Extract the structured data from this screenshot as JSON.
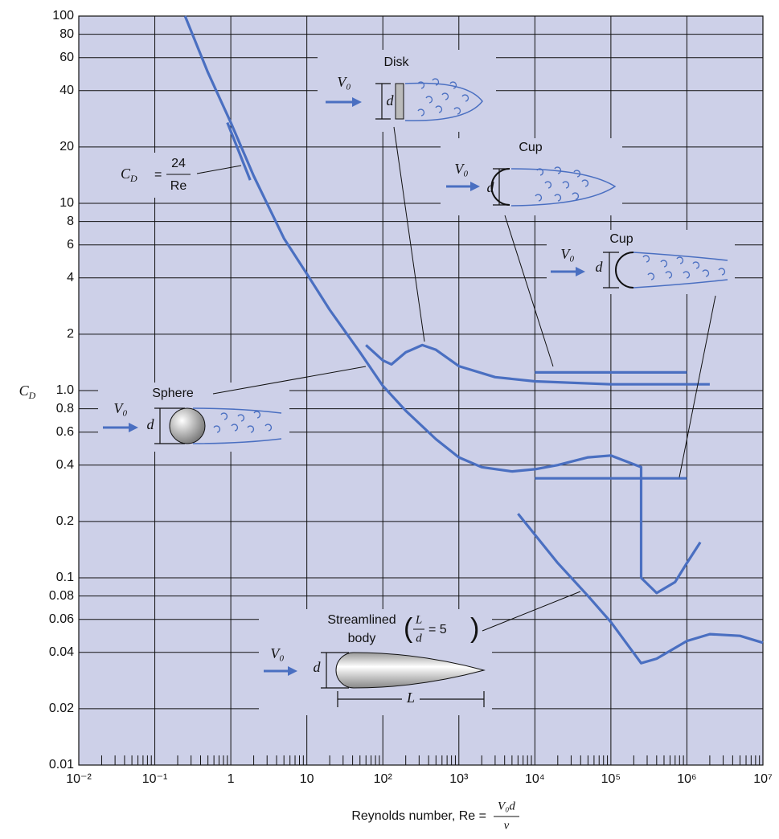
{
  "chart_data": {
    "type": "line",
    "xlabel": "Reynolds number, Re =",
    "xlabel_fraction": {
      "numerator": "V₀d",
      "denominator": "ν"
    },
    "ylabel": {
      "symbol": "C",
      "subscript": "D"
    },
    "log_x": true,
    "log_y": true,
    "grid": true,
    "xlim": [
      0.01,
      10000000
    ],
    "ylim": [
      0.01,
      100
    ],
    "xticks": [
      {
        "value": 0.01,
        "label": "10⁻²"
      },
      {
        "value": 0.1,
        "label": "10⁻¹"
      },
      1,
      10,
      {
        "value": 100,
        "label": "10²"
      },
      {
        "value": 1000,
        "label": "10³"
      },
      {
        "value": 10000,
        "label": "10⁴"
      },
      {
        "value": 100000,
        "label": "10⁵"
      },
      {
        "value": 1000000,
        "label": "10⁶"
      },
      {
        "value": 10000000,
        "label": "10⁷"
      }
    ],
    "yticks": [
      0.01,
      0.02,
      0.04,
      0.06,
      0.08,
      0.1,
      0.2,
      0.4,
      0.6,
      0.8,
      {
        "value": 1,
        "label": "1.0"
      },
      2,
      4,
      6,
      8,
      10,
      20,
      40,
      60,
      80,
      100
    ],
    "series": [
      {
        "color": "#4a6fc1",
        "x": [
          0.25,
          0.5,
          1,
          2,
          5,
          10,
          20,
          50,
          100,
          200,
          500,
          1000,
          2000,
          5000,
          10000,
          20000,
          50000,
          100000,
          250000,
          250000,
          400000,
          700000,
          1000000,
          1500000
        ],
        "values": [
          100,
          50,
          27,
          14,
          6.5,
          4.2,
          2.7,
          1.6,
          1.06,
          0.78,
          0.55,
          0.44,
          0.39,
          0.37,
          0.38,
          0.4,
          0.44,
          0.45,
          0.39,
          0.1,
          0.083,
          0.095,
          0.12,
          0.155
        ]
      },
      {
        "color": "#4a6fc1",
        "x": [
          60,
          100,
          130,
          200,
          330,
          500,
          1000,
          3000,
          10000,
          100000,
          2000000
        ],
        "values": [
          1.75,
          1.45,
          1.38,
          1.6,
          1.75,
          1.65,
          1.35,
          1.18,
          1.12,
          1.08,
          1.08
        ]
      },
      {
        "color": "#4a6fc1",
        "x": [
          10000,
          1000000
        ],
        "values": [
          1.25,
          1.25
        ]
      },
      {
        "color": "#4a6fc1",
        "x": [
          10000,
          1000000
        ],
        "values": [
          0.34,
          0.34
        ]
      },
      {
        "color": "#4a6fc1",
        "x": [
          0.9,
          1.8
        ],
        "values": [
          27,
          13.3
        ]
      },
      {
        "color": "#4a6fc1",
        "x": [
          6000,
          10000,
          20000,
          50000,
          100000,
          250000,
          400000,
          1000000,
          2000000,
          5000000,
          10000000
        ],
        "values": [
          0.22,
          0.17,
          0.12,
          0.08,
          0.058,
          0.035,
          0.037,
          0.046,
          0.05,
          0.049,
          0.045
        ]
      }
    ],
    "annotations": {
      "disk": {
        "label": "Disk",
        "velocity": "V₀",
        "diameter": "d"
      },
      "cup_open": {
        "label": "Cup",
        "velocity": "V₀",
        "diameter": "d"
      },
      "cup_hemisphere": {
        "label": "Cup",
        "velocity": "V₀",
        "diameter": "d"
      },
      "sphere": {
        "label": "Sphere",
        "velocity": "V₀",
        "diameter": "d"
      },
      "streamlined": {
        "label_line1": "Streamlined",
        "label_line2": "body",
        "ratio_numerator": "L",
        "ratio_denominator": "d",
        "ratio_value": "= 5",
        "velocity": "V₀",
        "diameter": "d",
        "length": "L"
      },
      "stokes": {
        "symbol": "C",
        "subscript": "D",
        "equals": "=",
        "numerator": "24",
        "denominator": "Re"
      }
    }
  }
}
